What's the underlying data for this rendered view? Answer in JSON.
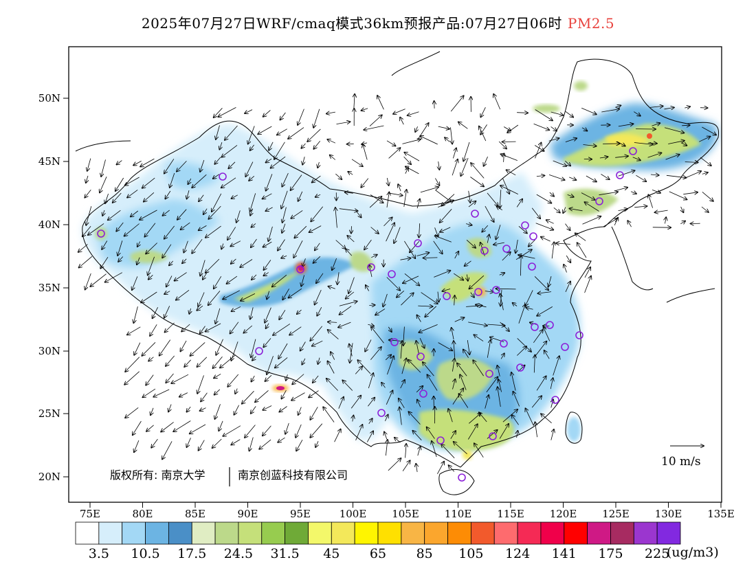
{
  "title": {
    "main": "2025年07月27日WRF/cmaq模式36km预报产品:07月27日06时",
    "pollutant": "PM2.5",
    "pollutant_color": "#e8413c"
  },
  "axes": {
    "lat_labels": [
      "50N",
      "45N",
      "40N",
      "35N",
      "30N",
      "25N",
      "20N"
    ],
    "lon_labels": [
      "75E",
      "80E",
      "85E",
      "90E",
      "95E",
      "100E",
      "105E",
      "110E",
      "115E",
      "120E",
      "125E",
      "130E",
      "135E"
    ]
  },
  "wind_legend": {
    "label": "10 m/s"
  },
  "copyright": {
    "left": "版权所有: 南京大学",
    "right": "南京创蓝科技有限公司"
  },
  "colorbar": {
    "unit": "(ug/m3)",
    "tick_labels": [
      "3.5",
      "10.5",
      "17.5",
      "24.5",
      "31.5",
      "45",
      "65",
      "85",
      "105",
      "124",
      "141",
      "175",
      "225"
    ],
    "colors": [
      "#ffffff",
      "#d6eefb",
      "#a3d8f5",
      "#6cb4e3",
      "#4a8fc7",
      "#e0edc3",
      "#bcd98a",
      "#c5e07a",
      "#97cc4f",
      "#6faa37",
      "#f3f86a",
      "#f3e85a",
      "#fff500",
      "#ffe000",
      "#f8b545",
      "#fba62d",
      "#fd8c05",
      "#f25a2c",
      "#fe6b6e",
      "#f52a55",
      "#f0004a",
      "#ff0000",
      "#cf1985",
      "#a72b61",
      "#9b36cf",
      "#8229e0"
    ]
  },
  "city_marker_color": "#8b1fd8"
}
